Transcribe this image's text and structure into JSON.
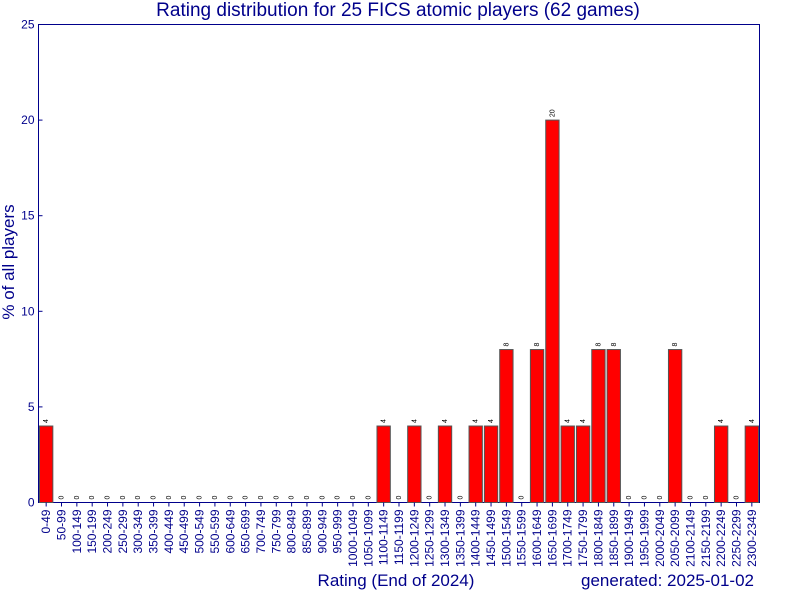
{
  "chart_data": {
    "type": "bar",
    "title": "Rating distribution for 25 FICS atomic players (62 games)",
    "xlabel": "Rating (End of 2024)",
    "ylabel": "% of all players",
    "footer": "generated: 2025-01-02",
    "ylim": [
      0,
      25
    ],
    "yticks": [
      "0",
      "5",
      "10",
      "15",
      "20",
      "25"
    ],
    "grid": false,
    "colors": {
      "bar": "#ff0000",
      "bar_edge": "#555555",
      "text": "#00008b",
      "axis": "#00008b"
    },
    "categories": [
      "0-49",
      "50-99",
      "100-149",
      "150-199",
      "200-249",
      "250-299",
      "300-349",
      "350-399",
      "400-449",
      "450-499",
      "500-549",
      "550-599",
      "600-649",
      "650-699",
      "700-749",
      "750-799",
      "800-849",
      "850-899",
      "900-949",
      "950-999",
      "1000-1049",
      "1050-1099",
      "1100-1149",
      "1150-1199",
      "1200-1249",
      "1250-1299",
      "1300-1349",
      "1350-1399",
      "1400-1449",
      "1450-1499",
      "1500-1549",
      "1550-1599",
      "1600-1649",
      "1650-1699",
      "1700-1749",
      "1750-1799",
      "1800-1849",
      "1850-1899",
      "1900-1949",
      "1950-1999",
      "2000-2049",
      "2050-2099",
      "2100-2149",
      "2150-2199",
      "2200-2249",
      "2250-2299",
      "2300-2349"
    ],
    "values": [
      4,
      0,
      0,
      0,
      0,
      0,
      0,
      0,
      0,
      0,
      0,
      0,
      0,
      0,
      0,
      0,
      0,
      0,
      0,
      0,
      0,
      0,
      4,
      0,
      4,
      0,
      4,
      0,
      4,
      4,
      8,
      0,
      8,
      20,
      4,
      4,
      8,
      8,
      0,
      0,
      0,
      8,
      0,
      0,
      4,
      0,
      4
    ],
    "data_labels": [
      "4",
      "0",
      "0",
      "0",
      "0",
      "0",
      "0",
      "0",
      "0",
      "0",
      "0",
      "0",
      "0",
      "0",
      "0",
      "0",
      "0",
      "0",
      "0",
      "0",
      "0",
      "0",
      "4",
      "0",
      "4",
      "0",
      "4",
      "0",
      "4",
      "4",
      "8",
      "0",
      "8",
      "20",
      "4",
      "4",
      "8",
      "8",
      "0",
      "0",
      "0",
      "8",
      "0",
      "0",
      "4",
      "0",
      "4"
    ]
  }
}
